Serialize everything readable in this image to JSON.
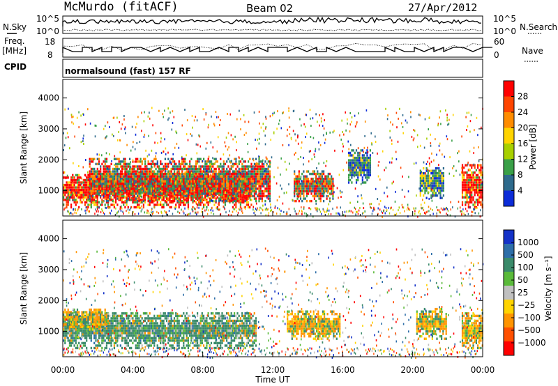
{
  "header": {
    "station": "McMurdo (fitACF)",
    "beam": "Beam 02",
    "date": "27/Apr/2012"
  },
  "params_panel": {
    "left_labels": [
      "N.Sky",
      "Freq.",
      "[MHz]",
      "CPID"
    ],
    "right_labels": [
      "N.Search",
      "Nave"
    ],
    "sky_ticks": [
      "10^5",
      "10^0"
    ],
    "freq_ticks": [
      "18",
      "8"
    ],
    "nave_ticks": [
      "60",
      "0"
    ],
    "cpid_text": "normalsound (fast) 157 RF"
  },
  "chart_data": [
    {
      "type": "heatmap",
      "title": "",
      "ylabel": "Slant Range [km]",
      "ylim": [
        180,
        4600
      ],
      "yticks": [
        "4000",
        "3000",
        "2000",
        "1000"
      ],
      "colorbar": {
        "label": "Power [dB]",
        "ticks": [
          "28",
          "24",
          "20",
          "16",
          "12",
          "8",
          "4"
        ],
        "colors": [
          "#ff0000",
          "#ff4500",
          "#ff8c00",
          "#ffd400",
          "#a8d000",
          "#3aa048",
          "#2e6a8c",
          "#0c2cd8"
        ]
      },
      "bands": [
        {
          "t0": 0.0,
          "t1": 10.8,
          "r0": 500,
          "r1": 1650,
          "level": "strong"
        },
        {
          "t0": 1.5,
          "t1": 11.8,
          "r0": 700,
          "r1": 2100,
          "level": "medium"
        },
        {
          "t0": 13.2,
          "t1": 15.4,
          "r0": 700,
          "r1": 1700,
          "level": "medium"
        },
        {
          "t0": 16.3,
          "t1": 17.6,
          "r0": 1300,
          "r1": 2400,
          "level": "weak"
        },
        {
          "t0": 20.4,
          "t1": 21.8,
          "r0": 800,
          "r1": 1800,
          "level": "weak"
        },
        {
          "t0": 22.8,
          "t1": 24.0,
          "r0": 500,
          "r1": 1900,
          "level": "strong"
        }
      ]
    },
    {
      "type": "heatmap",
      "title": "",
      "ylabel": "Slant Range [km]",
      "ylim": [
        180,
        4600
      ],
      "yticks": [
        "4000",
        "3000",
        "2000",
        "1000"
      ],
      "colorbar": {
        "label": "Velocity [m s⁻¹]",
        "ticks": [
          "1000",
          "500",
          "100",
          "50",
          "25",
          "−25",
          "−100",
          "−500",
          "−1000"
        ],
        "colors": [
          "#1432c8",
          "#2d6ea8",
          "#3a8a6a",
          "#5aba3a",
          "#c0c0c0",
          "#ffd400",
          "#ff9400",
          "#ff5000",
          "#ff0000"
        ]
      },
      "bands": [
        {
          "t0": 0.0,
          "t1": 11.0,
          "r0": 500,
          "r1": 1700,
          "level": "green"
        },
        {
          "t0": 0.0,
          "t1": 2.5,
          "r0": 1100,
          "r1": 1800,
          "level": "orange"
        },
        {
          "t0": 12.8,
          "t1": 15.8,
          "r0": 800,
          "r1": 1700,
          "level": "orange"
        },
        {
          "t0": 20.2,
          "t1": 21.9,
          "r0": 800,
          "r1": 1800,
          "level": "orange"
        },
        {
          "t0": 22.8,
          "t1": 24.0,
          "r0": 500,
          "r1": 1700,
          "level": "orange"
        }
      ]
    }
  ],
  "xaxis": {
    "label": "Time UT",
    "ticks": [
      "00:00",
      "04:00",
      "08:00",
      "12:00",
      "16:00",
      "20:00",
      "00:00"
    ]
  }
}
